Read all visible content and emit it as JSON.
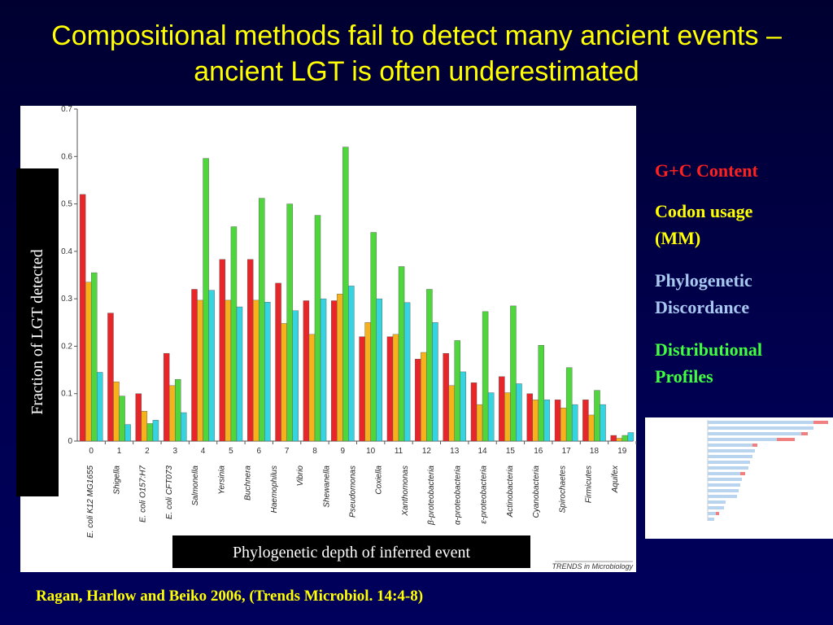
{
  "title": "Compositional methods fail to detect many ancient events – ancient LGT is often underestimated",
  "citation": "Ragan, Harlow and Beiko 2006, (Trends Microbiol. 14:4-8)",
  "chart_data": {
    "type": "bar",
    "y_label": "Fraction of  LGT detected",
    "x_label": "Phylogenetic depth of inferred event",
    "source": "TRENDS in Microbiology",
    "categories": [
      "0",
      "1",
      "2",
      "3",
      "4",
      "5",
      "6",
      "7",
      "8",
      "9",
      "10",
      "11",
      "12",
      "13",
      "14",
      "15",
      "16",
      "17",
      "18",
      "19"
    ],
    "taxa": [
      "E. coli K12 MG1655",
      "Shigella",
      "E. coli O157:H7",
      "E. coli CFT073",
      "Salmonella",
      "Yersinia",
      "Buchnera",
      "Haemophilus",
      "Vibrio",
      "Shewanella",
      "Pseudomonas",
      "Coxiella",
      "Xanthomonas",
      "β-proteobacteria",
      "α-proteobacteria",
      "ε-proteobacteria",
      "Actinobacteria",
      "Cyanobacteria",
      "Spirochaetes",
      "Firmicutes",
      "Aquifex"
    ],
    "series": [
      {
        "name": "G+C Content",
        "color": "#e8262a",
        "values": [
          0.52,
          0.27,
          0.1,
          0.185,
          0.32,
          0.383,
          0.383,
          0.333,
          0.296,
          0.296,
          0.22,
          0.22,
          0.173,
          0.185,
          0.123,
          0.136,
          0.1,
          0.087,
          0.087,
          0.012
        ]
      },
      {
        "name": "Codon usage (MM)",
        "color": "#f5b21c",
        "values": [
          0.335,
          0.125,
          0.063,
          0.117,
          0.297,
          0.297,
          0.297,
          0.248,
          0.225,
          0.31,
          0.25,
          0.225,
          0.187,
          0.117,
          0.077,
          0.102,
          0.087,
          0.07,
          0.055,
          0.006
        ]
      },
      {
        "name": "Distributional Profiles",
        "color": "#4fd63c",
        "values": [
          0.355,
          0.095,
          0.037,
          0.13,
          0.596,
          0.452,
          0.512,
          0.5,
          0.476,
          0.62,
          0.44,
          0.368,
          0.32,
          0.212,
          0.273,
          0.285,
          0.202,
          0.155,
          0.107,
          0.012
        ]
      },
      {
        "name": "Phylogenetic Discordance",
        "color": "#36d3e0",
        "values": [
          0.145,
          0.035,
          0.044,
          0.06,
          0.318,
          0.283,
          0.293,
          0.275,
          0.3,
          0.327,
          0.3,
          0.292,
          0.25,
          0.146,
          0.102,
          0.121,
          0.087,
          0.077,
          0.077,
          0.018
        ]
      }
    ],
    "legend_order": [
      0,
      1,
      3,
      2
    ],
    "legend_text_colors": [
      "#ff2020",
      "#ffff00",
      "#a8c8f0",
      "#40ff40"
    ],
    "ylim": [
      0,
      0.7
    ],
    "yticks": [
      0,
      0.1,
      0.2,
      0.3,
      0.4,
      0.5,
      0.6,
      0.7
    ]
  }
}
